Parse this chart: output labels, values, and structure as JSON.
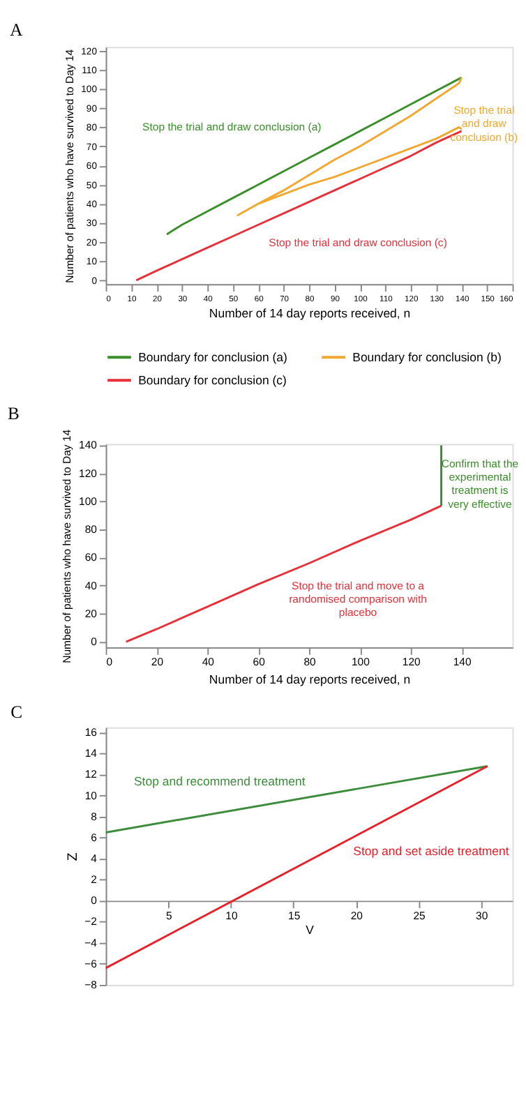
{
  "chart_data": [
    {
      "type": "line",
      "title": "A",
      "xlabel": "Number of 14 day reports received, n",
      "ylabel": "Number of patients who have survived to Day 14",
      "xlim": [
        0,
        160
      ],
      "ylim": [
        -2,
        122
      ],
      "xticks": [
        0,
        10,
        20,
        30,
        40,
        50,
        60,
        70,
        80,
        90,
        100,
        110,
        120,
        130,
        140,
        150,
        160
      ],
      "yticks": [
        0,
        10,
        20,
        30,
        40,
        50,
        60,
        70,
        80,
        90,
        100,
        110,
        120
      ],
      "grid": false,
      "legend": "bottom",
      "marker": "none",
      "line_style": "solid",
      "series": [
        {
          "name": "Boundary for conclusion (a)",
          "color": "#3a8f2a",
          "x": [
            24,
            30,
            40,
            50,
            60,
            70,
            80,
            90,
            100,
            110,
            120,
            130,
            140
          ],
          "values": [
            24,
            29,
            36,
            43,
            50,
            57,
            64,
            71,
            78,
            85,
            92,
            99,
            106
          ]
        },
        {
          "name": "Boundary for conclusion (b)",
          "color": "#f0a830",
          "x": [
            140,
            139,
            130,
            120,
            110,
            100,
            90,
            80,
            70,
            60,
            56,
            52,
            56,
            60,
            70,
            80,
            90,
            100,
            110,
            120,
            130,
            139,
            140
          ],
          "values": [
            106,
            103,
            95,
            86,
            78,
            70,
            63,
            55,
            47,
            40,
            37,
            34,
            37,
            40,
            45,
            50,
            54,
            59,
            64,
            69,
            74,
            80,
            79
          ]
        },
        {
          "name": "Boundary for conclusion (c)",
          "color": "#e8303a",
          "x": [
            12,
            20,
            30,
            40,
            50,
            60,
            70,
            80,
            90,
            100,
            110,
            120,
            130,
            140
          ],
          "values": [
            0,
            5,
            11,
            17,
            23,
            29,
            35,
            41,
            47,
            53,
            59,
            65,
            72,
            78
          ]
        }
      ],
      "annotations": [
        "Stop the trial and draw conclusion (a)",
        "Stop the trial\nand draw\nconclusion (b)",
        "Stop the trial and draw conclusion (c)"
      ]
    },
    {
      "type": "line",
      "title": "B",
      "xlabel": "Number of 14 day reports received, n",
      "ylabel": "Number of patients who have survived to Day 14",
      "xlim": [
        0,
        160
      ],
      "ylim": [
        -4,
        141
      ],
      "xticks": [
        0,
        20,
        40,
        60,
        80,
        100,
        120,
        140
      ],
      "yticks": [
        0,
        20,
        40,
        60,
        80,
        100,
        120,
        140
      ],
      "grid": false,
      "marker": "none",
      "line_style": "solid",
      "series": [
        {
          "color": "#3a8f2a",
          "x": [
            132,
            132
          ],
          "values": [
            97,
            140
          ]
        },
        {
          "color": "#e8303a",
          "x": [
            8,
            20,
            40,
            60,
            80,
            100,
            120,
            132
          ],
          "values": [
            0,
            9,
            25,
            41,
            56,
            72,
            87,
            97
          ]
        }
      ],
      "annotations": [
        "Confirm that the\nexperimental\ntreatment is\nvery effective",
        "Stop the trial and move to a\nrandomised comparison with\nplacebo"
      ]
    },
    {
      "type": "line",
      "title": "C",
      "xlabel": "V",
      "ylabel": "Z",
      "xlim": [
        0,
        32.5
      ],
      "ylim": [
        -8,
        16.5
      ],
      "xticks": [
        5,
        10,
        15,
        20,
        25,
        30
      ],
      "yticks": [
        -8,
        -6,
        -4,
        -2,
        0,
        2,
        4,
        6,
        8,
        10,
        12,
        14,
        16
      ],
      "grid": false,
      "marker": "none",
      "line_style": "solid",
      "series": [
        {
          "color": "#3c8c3c",
          "x": [
            0,
            30.5
          ],
          "values": [
            6.5,
            12.8
          ]
        },
        {
          "color": "#e8202a",
          "x": [
            0,
            30.5
          ],
          "values": [
            -6.4,
            12.8
          ]
        }
      ],
      "annotations": [
        "Stop and recommend treatment",
        "Stop and set aside treatment"
      ]
    }
  ]
}
